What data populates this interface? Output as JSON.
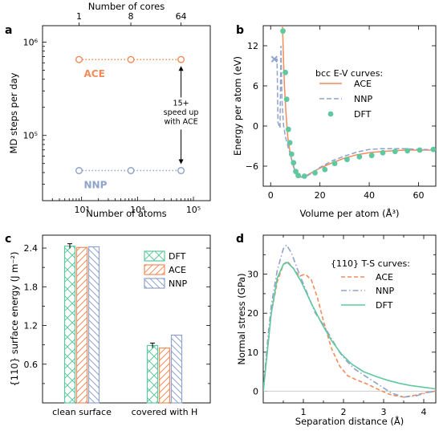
{
  "colors": {
    "dft": "#5fc8a0",
    "ace": "#f28c5a",
    "nnp": "#8fa3cc",
    "bg": "#ffffff",
    "axis": "#000000",
    "grid": "#cccccc"
  },
  "panels": {
    "a": {
      "letter": "a"
    },
    "b": {
      "letter": "b"
    },
    "c": {
      "letter": "c"
    },
    "d": {
      "letter": "d"
    }
  },
  "chart_data": [
    {
      "id": "a",
      "type": "line",
      "xlabel": "Number of atoms",
      "ylabel": "MD steps per day",
      "top_axis_label": "Number of cores",
      "top_ticks": [
        "1",
        "8",
        "64"
      ],
      "xscale": "log",
      "yscale": "log",
      "xlim": [
        200,
        200000
      ],
      "ylim": [
        20000,
        1500000
      ],
      "xtick_labels": [
        "10³",
        "10⁴",
        "10⁵"
      ],
      "ytick_labels": [
        "10⁵",
        "10⁶"
      ],
      "x": [
        900,
        7600,
        60000
      ],
      "series": [
        {
          "name": "ACE",
          "values": [
            650000,
            650000,
            650000
          ]
        },
        {
          "name": "NNP",
          "values": [
            42000,
            42000,
            42000
          ]
        }
      ],
      "annotation": [
        "15+",
        "speed up",
        "with ACE"
      ]
    },
    {
      "id": "b",
      "type": "line",
      "title": "bcc E-V curves:",
      "xlabel": "Volume per atom (Å³)",
      "ylabel": "Energy per atom (eV)",
      "xlim": [
        -3,
        67
      ],
      "ylim": [
        -9,
        15
      ],
      "xtick_labels": [
        "0",
        "20",
        "40",
        "60"
      ],
      "ytick_labels": [
        "−6",
        "0",
        "6",
        "12"
      ],
      "series": [
        {
          "name": "ACE",
          "style": "solid",
          "points": [
            [
              4.8,
              15
            ],
            [
              5.2,
              10
            ],
            [
              5.6,
              6
            ],
            [
              6.2,
              2
            ],
            [
              7,
              -1.8
            ],
            [
              8,
              -4.2
            ],
            [
              9,
              -5.8
            ],
            [
              10,
              -6.9
            ],
            [
              11.5,
              -7.6
            ],
            [
              13.5,
              -7.6
            ],
            [
              16,
              -7.1
            ],
            [
              20,
              -6.3
            ],
            [
              25,
              -5.5
            ],
            [
              30,
              -4.8
            ],
            [
              35,
              -4.3
            ],
            [
              40,
              -4.0
            ],
            [
              45,
              -3.8
            ],
            [
              50,
              -3.7
            ],
            [
              55,
              -3.6
            ],
            [
              60,
              -3.6
            ],
            [
              67,
              -3.6
            ]
          ]
        },
        {
          "name": "NNP",
          "style": "dashed",
          "points": [
            [
              1.5,
              10
            ],
            [
              2.6,
              10
            ],
            [
              3,
              0.5
            ],
            [
              3.8,
              -0.3
            ],
            [
              4.2,
              12
            ],
            [
              4.6,
              4
            ],
            [
              5.2,
              0.2
            ],
            [
              6,
              -1.6
            ],
            [
              7,
              -3.0
            ],
            [
              8,
              -4.3
            ],
            [
              9,
              -5.6
            ],
            [
              10,
              -6.8
            ],
            [
              11.5,
              -7.6
            ],
            [
              13.5,
              -7.7
            ],
            [
              16,
              -7.2
            ],
            [
              20,
              -6.2
            ],
            [
              25,
              -5.2
            ],
            [
              30,
              -4.5
            ],
            [
              35,
              -3.9
            ],
            [
              40,
              -3.5
            ],
            [
              45,
              -3.4
            ],
            [
              50,
              -3.4
            ],
            [
              55,
              -3.4
            ],
            [
              60,
              -3.5
            ],
            [
              67,
              -3.5
            ]
          ]
        },
        {
          "name": "DFT",
          "style": "points",
          "points": [
            [
              5,
              14.2
            ],
            [
              6,
              8
            ],
            [
              6.5,
              4
            ],
            [
              7.2,
              -0.5
            ],
            [
              7.8,
              -2.5
            ],
            [
              8.5,
              -4.2
            ],
            [
              9.3,
              -5.5
            ],
            [
              10.2,
              -6.8
            ],
            [
              11.2,
              -7.4
            ],
            [
              13.7,
              -7.5
            ],
            [
              18,
              -7.0
            ],
            [
              22,
              -6.5
            ],
            [
              26,
              -5.6
            ],
            [
              31,
              -5.0
            ],
            [
              36,
              -4.6
            ],
            [
              41,
              -4.4
            ],
            [
              45.5,
              -4.0
            ],
            [
              50.5,
              -3.8
            ],
            [
              55.5,
              -3.7
            ],
            [
              60.5,
              -3.6
            ],
            [
              66,
              -3.5
            ]
          ]
        }
      ],
      "nnp_marker": [
        1.5,
        10
      ]
    },
    {
      "id": "c",
      "type": "bar",
      "xlabel": "",
      "ylabel": "{110} surface energy (J m⁻²)",
      "ylim": [
        0,
        2.6
      ],
      "ytick_labels": [
        "0.6",
        "1.2",
        "1.8",
        "2.4"
      ],
      "categories": [
        "clean surface",
        "covered with H"
      ],
      "series": [
        {
          "name": "DFT",
          "values": [
            2.43,
            0.89
          ]
        },
        {
          "name": "ACE",
          "values": [
            2.41,
            0.85
          ]
        },
        {
          "name": "NNP",
          "values": [
            2.42,
            1.05
          ]
        }
      ]
    },
    {
      "id": "d",
      "type": "line",
      "title": "{110} T-S curves:",
      "xlabel": "Separation distance (Å)",
      "ylabel": "Normal stress (GPa)",
      "xlim": [
        0,
        4.3
      ],
      "ylim": [
        -3,
        40
      ],
      "xtick_labels": [
        "1",
        "2",
        "3",
        "4"
      ],
      "ytick_labels": [
        "0",
        "10",
        "20",
        "30"
      ],
      "series": [
        {
          "name": "ACE",
          "style": "dashed",
          "points": [
            [
              0,
              0
            ],
            [
              0.1,
              10
            ],
            [
              0.2,
              20
            ],
            [
              0.35,
              28
            ],
            [
              0.5,
              32.5
            ],
            [
              0.6,
              33.3
            ],
            [
              0.75,
              31.5
            ],
            [
              0.9,
              29.5
            ],
            [
              1.05,
              30
            ],
            [
              1.2,
              28.5
            ],
            [
              1.35,
              24
            ],
            [
              1.5,
              18
            ],
            [
              1.7,
              11
            ],
            [
              1.9,
              6.5
            ],
            [
              2.1,
              4
            ],
            [
              2.3,
              3
            ],
            [
              2.6,
              1.8
            ],
            [
              2.9,
              0.3
            ],
            [
              3.2,
              -1
            ],
            [
              3.5,
              -1.5
            ],
            [
              3.8,
              -1
            ],
            [
              4.1,
              -0.2
            ],
            [
              4.3,
              0
            ]
          ]
        },
        {
          "name": "NNP",
          "style": "dashdot",
          "points": [
            [
              0,
              0
            ],
            [
              0.1,
              12
            ],
            [
              0.2,
              22
            ],
            [
              0.35,
              31
            ],
            [
              0.5,
              36.5
            ],
            [
              0.58,
              37.5
            ],
            [
              0.7,
              35.5
            ],
            [
              0.9,
              30
            ],
            [
              1.1,
              25
            ],
            [
              1.3,
              20
            ],
            [
              1.5,
              17
            ],
            [
              1.7,
              13.5
            ],
            [
              1.9,
              10
            ],
            [
              2.1,
              7.5
            ],
            [
              2.3,
              5.5
            ],
            [
              2.6,
              3.5
            ],
            [
              2.9,
              1.5
            ],
            [
              3.2,
              -0.5
            ],
            [
              3.5,
              -1.5
            ],
            [
              3.8,
              -1.2
            ],
            [
              4.1,
              -0.3
            ],
            [
              4.3,
              0
            ]
          ]
        },
        {
          "name": "DFT",
          "style": "solid",
          "points": [
            [
              0,
              0
            ],
            [
              0.1,
              10
            ],
            [
              0.2,
              20
            ],
            [
              0.35,
              29
            ],
            [
              0.5,
              32.5
            ],
            [
              0.6,
              33
            ],
            [
              0.75,
              31.5
            ],
            [
              0.95,
              28
            ],
            [
              1.2,
              22.5
            ],
            [
              1.45,
              17.5
            ],
            [
              1.7,
              13
            ],
            [
              1.95,
              9.5
            ],
            [
              2.2,
              7
            ],
            [
              2.5,
              5
            ],
            [
              2.8,
              3.8
            ],
            [
              3.1,
              2.8
            ],
            [
              3.4,
              2
            ],
            [
              3.7,
              1.4
            ],
            [
              4.0,
              1
            ],
            [
              4.3,
              0.6
            ]
          ]
        }
      ],
      "zero_line": true
    }
  ]
}
